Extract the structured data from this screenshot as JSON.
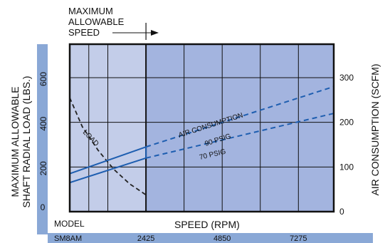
{
  "chart_data": {
    "type": "line",
    "annotation": {
      "lines": [
        "MAXIMUM",
        "ALLOWABLE",
        "SPEED"
      ],
      "speed": 2425
    },
    "ylabel_left": [
      "MAXIMUM ALLOWABLE",
      "SHAFT RADIAL LOAD (LBS.)"
    ],
    "ylabel_right": "AIR CONSUMPTION (SCFM)",
    "xlabel": "SPEED (RPM)",
    "x_title_left": "MODEL",
    "model": "SM8AM",
    "x_ticks": [
      2425,
      4850,
      7275
    ],
    "xlim": [
      0,
      8400
    ],
    "ylim_left": [
      0,
      750
    ],
    "yticks_left": [
      0,
      200,
      400,
      600
    ],
    "ylim_right": [
      0,
      375
    ],
    "yticks_right": [
      0,
      100,
      200,
      300
    ],
    "grid": true,
    "colors": {
      "band": "#8aa8d6",
      "plot_light": "#c3cde9",
      "plot_dark": "#a3b4df",
      "air_line": "#1e5eb0",
      "load_line": "#222222"
    },
    "series": [
      {
        "name": "LOAD",
        "axis": "left",
        "style": "dashed",
        "x": [
          0,
          400,
          900,
          1400,
          1900,
          2425
        ],
        "y": [
          510,
          380,
          275,
          190,
          125,
          75
        ]
      },
      {
        "name": "90 PSIG",
        "axis": "right",
        "x": [
          0,
          2425,
          8400
        ],
        "y": [
          85,
          145,
          280
        ],
        "solid_to": 2425
      },
      {
        "name": "70 PSIG",
        "axis": "right",
        "x": [
          0,
          2425,
          8400
        ],
        "y": [
          65,
          120,
          220
        ],
        "solid_to": 2425
      }
    ],
    "line_labels": [
      "AIR CONSUMPTION",
      "90 PSIG",
      "70 PSIG",
      "LOAD"
    ]
  }
}
